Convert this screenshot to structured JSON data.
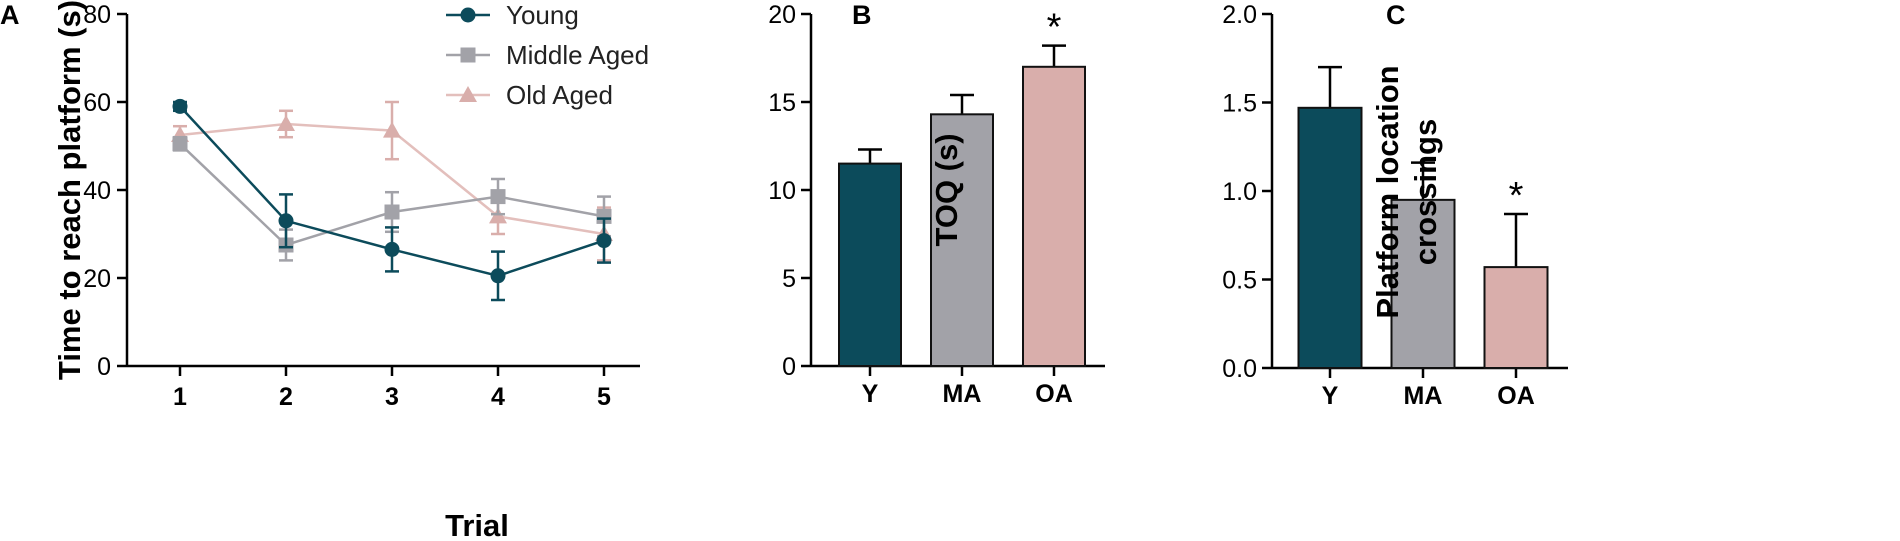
{
  "colors": {
    "young": "#0c4b5b",
    "middle": "#a2a2a8",
    "old": "#d9aeab",
    "axis": "#000000",
    "old_line": "#e3bfbc"
  },
  "chart_data": [
    {
      "panel": "A",
      "type": "line",
      "xlabel": "Trial",
      "ylabel": "Time to reach platform  (s)",
      "x": [
        1,
        2,
        3,
        4,
        5
      ],
      "x_ticks": [
        "1",
        "2",
        "3",
        "4",
        "5"
      ],
      "ylim": [
        0,
        80
      ],
      "y_ticks": [
        "0",
        "20",
        "40",
        "60",
        "80"
      ],
      "legend_position": "top-right",
      "series": [
        {
          "name": "Young",
          "color_key": "young",
          "marker": "circle",
          "values": [
            59,
            33,
            26.5,
            20.5,
            28.5
          ],
          "error": [
            1,
            6,
            5,
            5.5,
            5
          ]
        },
        {
          "name": "Middle Aged",
          "color_key": "middle",
          "marker": "square",
          "values": [
            50.5,
            27.5,
            35,
            38.5,
            34
          ],
          "error": [
            1.5,
            3.5,
            4.5,
            4,
            4.5
          ]
        },
        {
          "name": "Old Aged",
          "color_key": "old",
          "marker": "triangle",
          "values": [
            52.5,
            55,
            53.5,
            34,
            30
          ],
          "error": [
            2,
            3,
            6.5,
            4,
            6
          ]
        }
      ]
    },
    {
      "panel": "B",
      "type": "bar",
      "ylabel": "TOQ (s)",
      "categories": [
        "Y",
        "MA",
        "OA"
      ],
      "values": [
        11.5,
        14.3,
        17.0
      ],
      "error": [
        0.8,
        1.1,
        1.2
      ],
      "ylim": [
        0,
        20
      ],
      "y_ticks": [
        "0",
        "5",
        "10",
        "15",
        "20"
      ],
      "annotations": [
        "",
        "",
        "*"
      ]
    },
    {
      "panel": "C",
      "type": "bar",
      "ylabel": "Platform location crossings",
      "ylabel_lines": [
        "Platform location",
        "crossings"
      ],
      "categories": [
        "Y",
        "MA",
        "OA"
      ],
      "values": [
        1.47,
        0.95,
        0.57
      ],
      "error": [
        0.23,
        0.21,
        0.3
      ],
      "ylim": [
        0,
        2
      ],
      "y_ticks": [
        "0.0",
        "0.5",
        "1.0",
        "1.5",
        "2.0"
      ],
      "annotations": [
        "",
        "",
        "*"
      ]
    }
  ]
}
